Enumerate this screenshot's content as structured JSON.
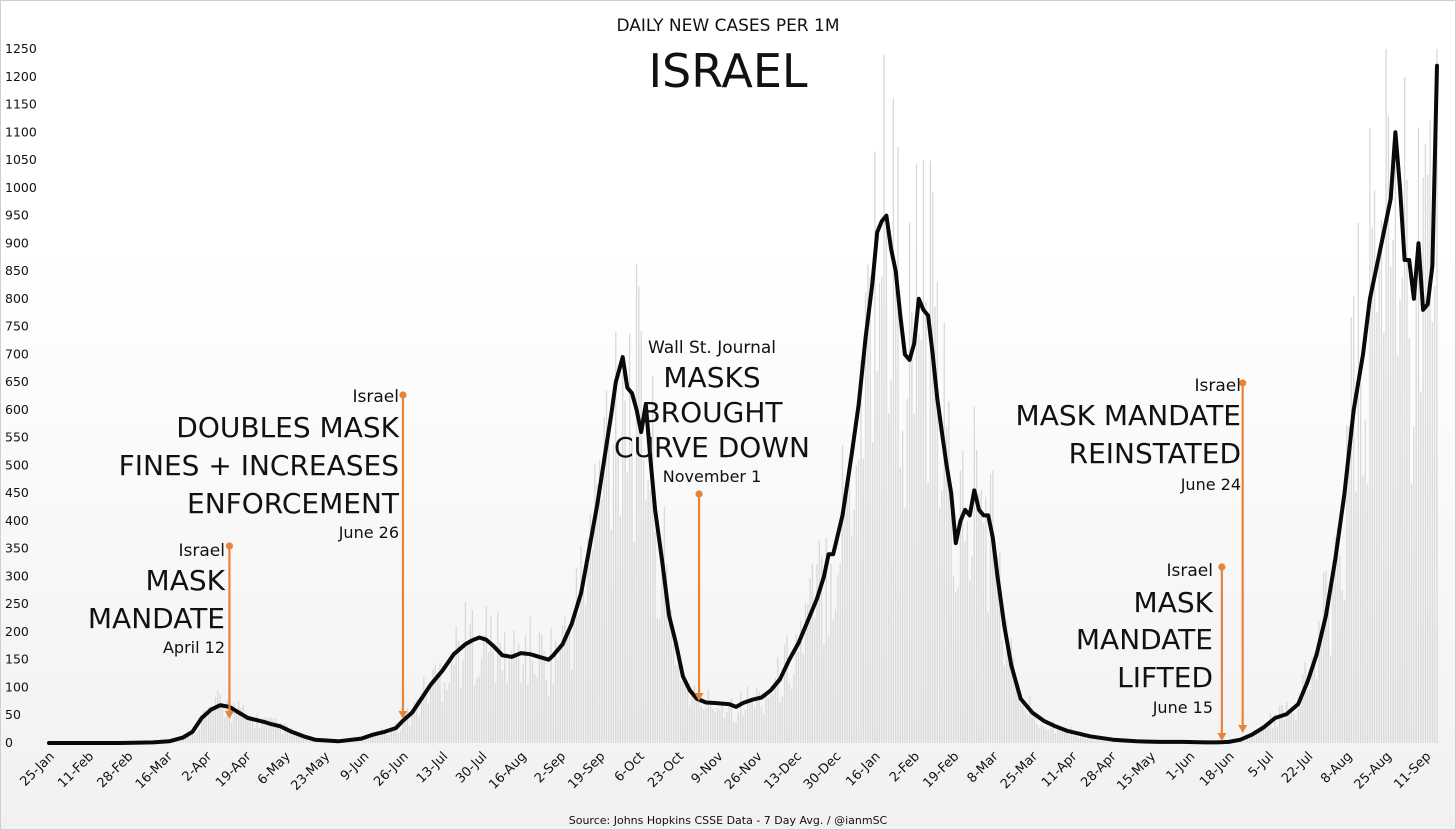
{
  "chart_data": {
    "type": "line",
    "title": "DAILY NEW CASES PER 1M",
    "subtitle": "ISRAEL",
    "source": "Source: Johns Hopkins CSSE Data - 7 Day Avg. / @ianmSC",
    "xlabel": "",
    "ylabel": "",
    "ylim": [
      0,
      1250
    ],
    "y_ticks": [
      0,
      50,
      100,
      150,
      200,
      250,
      300,
      350,
      400,
      450,
      500,
      550,
      600,
      650,
      700,
      750,
      800,
      850,
      900,
      950,
      1000,
      1050,
      1100,
      1150,
      1200,
      1250
    ],
    "x_ticks": [
      {
        "label": "25-Jan",
        "day": 0
      },
      {
        "label": "11-Feb",
        "day": 17
      },
      {
        "label": "28-Feb",
        "day": 34
      },
      {
        "label": "16-Mar",
        "day": 51
      },
      {
        "label": "2-Apr",
        "day": 68
      },
      {
        "label": "19-Apr",
        "day": 85
      },
      {
        "label": "6-May",
        "day": 102
      },
      {
        "label": "23-May",
        "day": 119
      },
      {
        "label": "9-Jun",
        "day": 136
      },
      {
        "label": "26-Jun",
        "day": 153
      },
      {
        "label": "13-Jul",
        "day": 170
      },
      {
        "label": "30-Jul",
        "day": 187
      },
      {
        "label": "16-Aug",
        "day": 204
      },
      {
        "label": "2-Sep",
        "day": 221
      },
      {
        "label": "19-Sep",
        "day": 238
      },
      {
        "label": "6-Oct",
        "day": 255
      },
      {
        "label": "23-Oct",
        "day": 272
      },
      {
        "label": "9-Nov",
        "day": 289
      },
      {
        "label": "26-Nov",
        "day": 306
      },
      {
        "label": "13-Dec",
        "day": 323
      },
      {
        "label": "30-Dec",
        "day": 340
      },
      {
        "label": "16-Jan",
        "day": 357
      },
      {
        "label": "2-Feb",
        "day": 374
      },
      {
        "label": "19-Feb",
        "day": 391
      },
      {
        "label": "8-Mar",
        "day": 408
      },
      {
        "label": "25-Mar",
        "day": 425
      },
      {
        "label": "11-Apr",
        "day": 442
      },
      {
        "label": "28-Apr",
        "day": 459
      },
      {
        "label": "15-May",
        "day": 476
      },
      {
        "label": "1-Jun",
        "day": 493
      },
      {
        "label": "18-Jun",
        "day": 510
      },
      {
        "label": "5-Jul",
        "day": 527
      },
      {
        "label": "22-Jul",
        "day": 544
      },
      {
        "label": "8-Aug",
        "day": 561
      },
      {
        "label": "25-Aug",
        "day": 578
      },
      {
        "label": "11-Sep",
        "day": 595
      }
    ],
    "x_range": [
      0,
      600
    ],
    "series": [
      {
        "name": "7 Day Avg.",
        "x": [
          0,
          30,
          45,
          52,
          58,
          62,
          66,
          70,
          74,
          78,
          82,
          86,
          89,
          93,
          96,
          100,
          105,
          110,
          115,
          125,
          135,
          140,
          145,
          150,
          153,
          157,
          161,
          165,
          170,
          175,
          180,
          183,
          186,
          189,
          192,
          196,
          200,
          204,
          208,
          212,
          216,
          218,
          222,
          226,
          230,
          234,
          237,
          240,
          243,
          245,
          248,
          250,
          252,
          254,
          256,
          258,
          260,
          262,
          265,
          268,
          271,
          274,
          277,
          280,
          284,
          288,
          291,
          294,
          297,
          300,
          304,
          308,
          312,
          316,
          320,
          324,
          328,
          332,
          335,
          337,
          339,
          343,
          347,
          350,
          353,
          356,
          358,
          360,
          362,
          364,
          366,
          368,
          370,
          372,
          374,
          376,
          378,
          380,
          382,
          384,
          386,
          388,
          390,
          392,
          394,
          396,
          398,
          400,
          402,
          404,
          406,
          408,
          410,
          413,
          416,
          420,
          425,
          430,
          435,
          440,
          450,
          460,
          470,
          480,
          490,
          500,
          505,
          510,
          515,
          520,
          525,
          530,
          535,
          540,
          544,
          548,
          552,
          556,
          560,
          564,
          568,
          571,
          574,
          577,
          580,
          582,
          584,
          586,
          588,
          590,
          592,
          594,
          596,
          598,
          600
        ],
        "values": [
          0,
          0,
          1,
          3,
          10,
          20,
          45,
          60,
          68,
          65,
          55,
          45,
          42,
          38,
          34,
          30,
          20,
          12,
          6,
          3,
          8,
          15,
          20,
          27,
          40,
          55,
          80,
          105,
          130,
          160,
          178,
          185,
          190,
          186,
          175,
          158,
          155,
          162,
          160,
          155,
          150,
          158,
          178,
          215,
          270,
          360,
          430,
          510,
          590,
          650,
          695,
          640,
          630,
          600,
          560,
          610,
          510,
          420,
          330,
          230,
          180,
          120,
          95,
          80,
          73,
          72,
          71,
          70,
          65,
          72,
          78,
          82,
          95,
          115,
          150,
          180,
          220,
          260,
          300,
          340,
          340,
          410,
          520,
          610,
          730,
          830,
          920,
          940,
          950,
          890,
          850,
          770,
          700,
          690,
          720,
          800,
          780,
          770,
          700,
          620,
          560,
          500,
          450,
          360,
          400,
          420,
          410,
          455,
          420,
          410,
          410,
          370,
          300,
          210,
          140,
          80,
          55,
          40,
          30,
          22,
          12,
          6,
          3,
          2,
          2,
          1,
          1,
          2,
          6,
          15,
          28,
          45,
          52,
          70,
          110,
          160,
          230,
          330,
          450,
          600,
          700,
          800,
          860,
          920,
          980,
          1100,
          1000,
          870,
          870,
          800,
          900,
          780,
          790,
          860,
          1220
        ]
      }
    ],
    "annotations": [
      {
        "source": "Israel",
        "lines": [
          "MASK",
          "MANDATE"
        ],
        "date": "April 12",
        "day": 78
      },
      {
        "source": "Israel",
        "lines": [
          "DOUBLES MASK",
          "FINES + INCREASES",
          "ENFORCEMENT"
        ],
        "date": "June 26",
        "day": 153
      },
      {
        "source": "Wall St. Journal",
        "lines": [
          "MASKS",
          "BROUGHT",
          "CURVE DOWN"
        ],
        "date": "November 1",
        "day": 281
      },
      {
        "source": "Israel",
        "lines": [
          "MASK",
          "MANDATE",
          "LIFTED"
        ],
        "date": "June 15",
        "day": 507
      },
      {
        "source": "Israel",
        "lines": [
          "MASK MANDATE",
          "REINSTATED"
        ],
        "date": "June 24",
        "day": 516
      }
    ],
    "colors": {
      "line": "#0a0a0a",
      "annotation_arrow": "#e8833a",
      "daily_bars": "#d9d9d9"
    }
  }
}
